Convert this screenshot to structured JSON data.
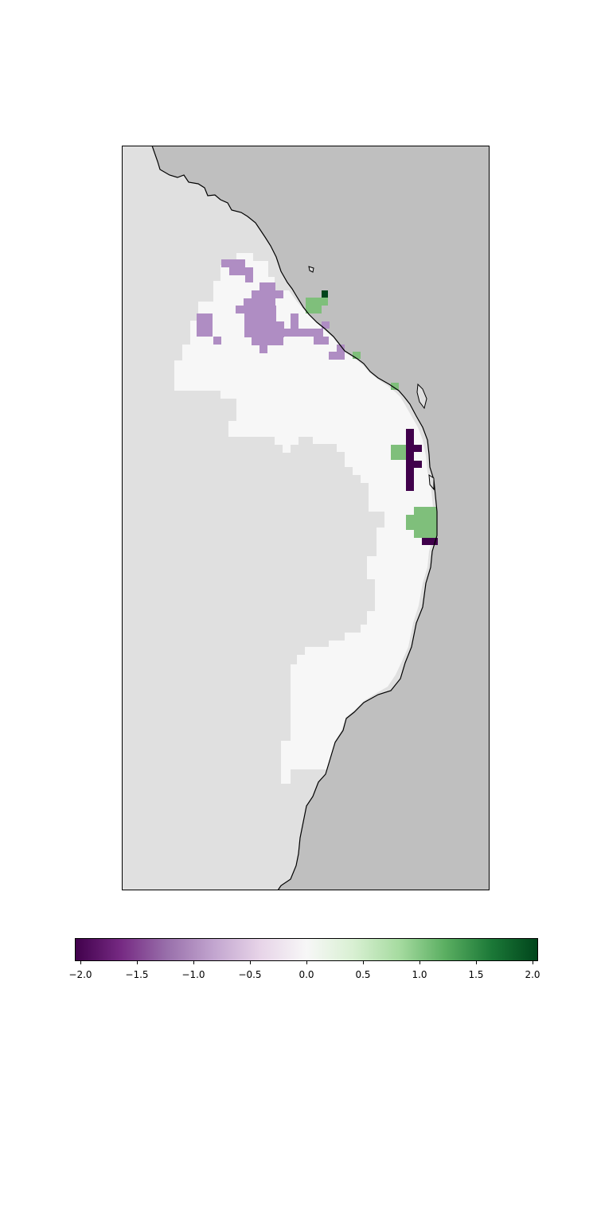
{
  "map": {
    "colormap": "PRGn",
    "colors": {
      "ocean": "#bfbfbf",
      "land_nodata": "#e0e0e0",
      "zero": "#f7f7f7",
      "coastline": "#000000",
      "frame": "#000000"
    },
    "value_labels_visible": false
  },
  "colorbar": {
    "range": [
      -2.0,
      2.0
    ],
    "ticks": [
      {
        "value": -2.0,
        "label": "−2.0"
      },
      {
        "value": -1.5,
        "label": "−1.5"
      },
      {
        "value": -1.0,
        "label": "−1.0"
      },
      {
        "value": -0.5,
        "label": "−0.5"
      },
      {
        "value": 0.0,
        "label": "0.0"
      },
      {
        "value": 0.5,
        "label": "0.5"
      },
      {
        "value": 1.0,
        "label": "1.0"
      },
      {
        "value": 1.5,
        "label": "1.5"
      },
      {
        "value": 2.0,
        "label": "2.0"
      }
    ],
    "gradient_stops": [
      "#40004b",
      "#762a83",
      "#9970ab",
      "#c2a5cf",
      "#e7d4e8",
      "#f7f7f7",
      "#d9f0d3",
      "#a6dba0",
      "#5aae61",
      "#1b7837",
      "#00441b"
    ]
  }
}
